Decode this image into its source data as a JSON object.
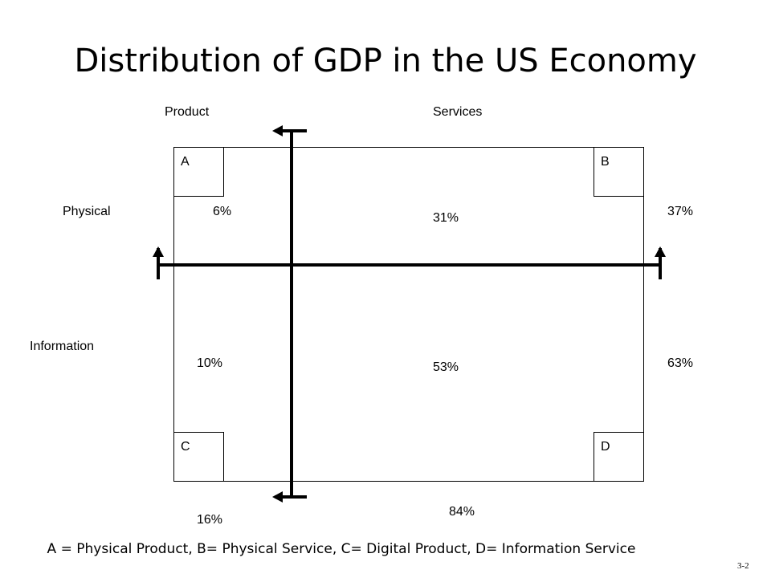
{
  "title": "Distribution of GDP in the US Economy",
  "headers": {
    "product": "Product",
    "services": "Services",
    "physical": "Physical",
    "information": "Information"
  },
  "quadrants": {
    "a": "A",
    "b": "B",
    "c": "C",
    "d": "D"
  },
  "values": {
    "physical_product": "6%",
    "physical_services": "31%",
    "physical_total": "37%",
    "information_product": "10%",
    "information_services": "53%",
    "information_total": "63%",
    "product_total": "16%",
    "services_total": "84%"
  },
  "legend": "A = Physical Product, B= Physical Service, C= Digital Product, D= Information Service",
  "slide_number": "3-2"
}
